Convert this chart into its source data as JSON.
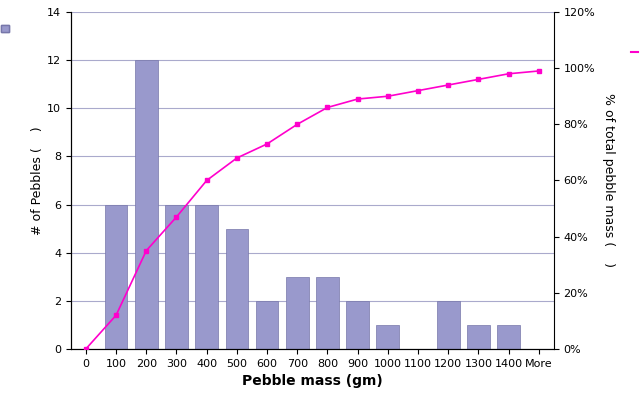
{
  "categories": [
    "0",
    "100",
    "200",
    "300",
    "400",
    "500",
    "600",
    "700",
    "800",
    "900",
    "1000",
    "1100",
    "1200",
    "1300",
    "1400",
    "More"
  ],
  "bar_values": [
    0,
    6,
    12,
    6,
    6,
    5,
    2,
    3,
    3,
    2,
    1,
    0,
    2,
    1,
    1,
    0
  ],
  "cumulative_pct": [
    0.0,
    0.12,
    0.35,
    0.47,
    0.6,
    0.68,
    0.73,
    0.8,
    0.86,
    0.89,
    0.9,
    0.92,
    0.94,
    0.96,
    0.98,
    0.99
  ],
  "bar_color": "#9999cc",
  "line_color": "#ff00cc",
  "bar_edge_color": "#7777aa",
  "xlabel": "Pebble mass (gm)",
  "ylabel_left": "# of Pebbles ( ",
  "ylabel_right": "% of total pebble mass ( ",
  "ylim_left": [
    0,
    14
  ],
  "ylim_right": [
    0,
    1.2
  ],
  "yticks_right": [
    0.0,
    0.2,
    0.4,
    0.6,
    0.8,
    1.0,
    1.2
  ],
  "ytick_labels_right": [
    "0%",
    "20%",
    "40%",
    "60%",
    "80%",
    "100%",
    "120%"
  ],
  "yticks_left": [
    0,
    2,
    4,
    6,
    8,
    10,
    12,
    14
  ],
  "background_color": "#ffffff",
  "grid_color": "#aaaacc",
  "axis_fontsize": 9,
  "tick_fontsize": 8,
  "xlabel_fontsize": 10
}
